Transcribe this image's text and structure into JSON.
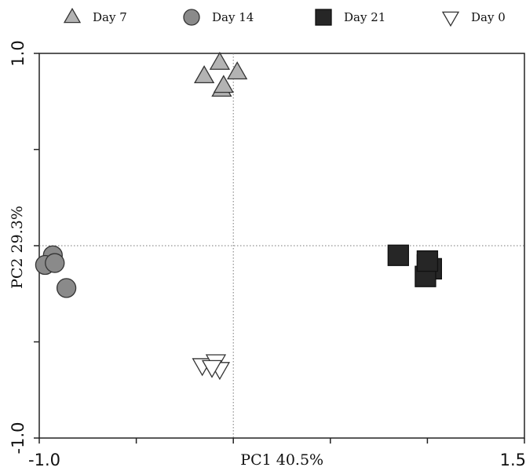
{
  "chart_data": {
    "type": "scatter",
    "xlabel": "PC1 40.5%",
    "ylabel": "PC2 29.3%",
    "xlim": [
      -1.0,
      1.5
    ],
    "ylim": [
      -1.0,
      1.0
    ],
    "x_tick_labels": [
      {
        "value": -1.0,
        "label": "-1.0"
      },
      {
        "value": 1.5,
        "label": "1.5"
      }
    ],
    "y_tick_labels": [
      {
        "value": 1.0,
        "label": "1.0"
      },
      {
        "value": -1.0,
        "label": "-1.0"
      }
    ],
    "reference_lines": {
      "x": 0,
      "y": 0,
      "style": "dotted"
    },
    "legend_position": "top",
    "series": [
      {
        "name": "Day 7",
        "marker": "triangle-up",
        "color": "#b3b3b3",
        "points": [
          {
            "x": -0.07,
            "y": 0.95
          },
          {
            "x": -0.15,
            "y": 0.88
          },
          {
            "x": 0.02,
            "y": 0.9
          },
          {
            "x": -0.06,
            "y": 0.81
          },
          {
            "x": -0.05,
            "y": 0.83
          }
        ]
      },
      {
        "name": "Day 14",
        "marker": "circle",
        "color": "#8a8a8a",
        "points": [
          {
            "x": -0.93,
            "y": -0.05
          },
          {
            "x": -0.97,
            "y": -0.1
          },
          {
            "x": -0.92,
            "y": -0.09
          },
          {
            "x": -0.86,
            "y": -0.22
          }
        ]
      },
      {
        "name": "Day 21",
        "marker": "square",
        "color": "#262626",
        "points": [
          {
            "x": 0.85,
            "y": -0.05
          },
          {
            "x": 1.0,
            "y": -0.1
          },
          {
            "x": 1.02,
            "y": -0.12
          },
          {
            "x": 0.99,
            "y": -0.16
          },
          {
            "x": 1.0,
            "y": -0.08
          }
        ]
      },
      {
        "name": "Day 0",
        "marker": "triangle-down",
        "color": "#ffffff",
        "points": [
          {
            "x": -0.16,
            "y": -0.62
          },
          {
            "x": -0.09,
            "y": -0.6
          },
          {
            "x": -0.07,
            "y": -0.64
          },
          {
            "x": -0.11,
            "y": -0.63
          }
        ]
      }
    ]
  }
}
